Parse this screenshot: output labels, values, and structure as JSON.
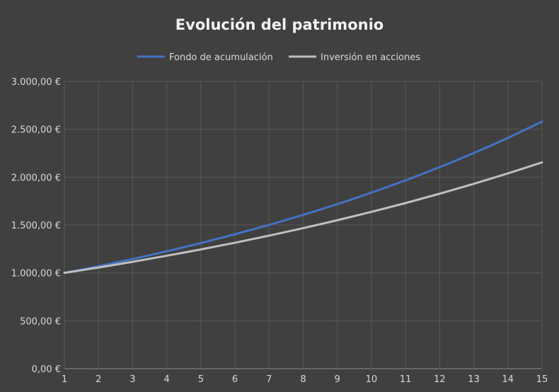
{
  "chart_data": {
    "type": "line",
    "title": "Evolución del patrimonio",
    "x": [
      1,
      2,
      3,
      4,
      5,
      6,
      7,
      8,
      9,
      10,
      11,
      12,
      13,
      14,
      15
    ],
    "series": [
      {
        "name": "Fondo de acumulación",
        "color": "#4472c4",
        "values": [
          1000,
          1070,
          1145,
          1225,
          1311,
          1403,
          1501,
          1606,
          1718,
          1838,
          1967,
          2105,
          2252,
          2410,
          2579
        ]
      },
      {
        "name": "Inversión en acciones",
        "color": "#bfbfbf",
        "values": [
          1000,
          1056,
          1116,
          1179,
          1245,
          1315,
          1389,
          1467,
          1550,
          1637,
          1729,
          1827,
          1930,
          2039,
          2154
        ]
      }
    ],
    "ylim": [
      0,
      3000
    ],
    "y_ticks": [
      "0,00 €",
      "500,00 €",
      "1.000,00 €",
      "1.500,00 €",
      "2.000,00 €",
      "2.500,00 €",
      "3.000,00 €"
    ],
    "y_tick_values": [
      0,
      500,
      1000,
      1500,
      2000,
      2500,
      3000
    ],
    "x_ticks": [
      "1",
      "2",
      "3",
      "4",
      "5",
      "6",
      "7",
      "8",
      "9",
      "10",
      "11",
      "12",
      "13",
      "14",
      "15"
    ],
    "grid": true,
    "legend_position": "top"
  }
}
